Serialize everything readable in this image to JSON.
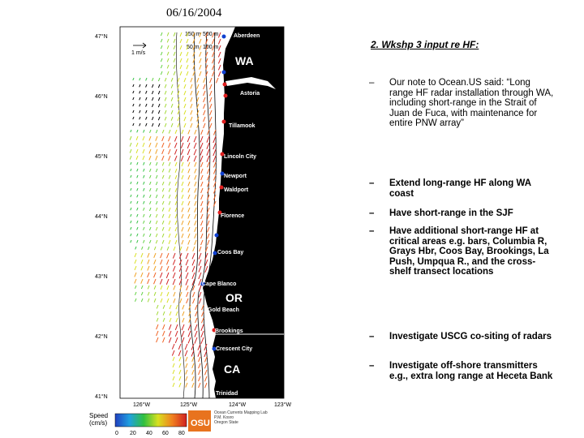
{
  "map": {
    "date": "06/16/2004",
    "lat_labels": [
      "47°N",
      "46°N",
      "45°N",
      "44°N",
      "43°N",
      "42°N",
      "41°N"
    ],
    "lon_labels": [
      "126°W",
      "125°W",
      "124°W",
      "123°W"
    ],
    "depth_labels": [
      "150 m",
      "500 m",
      "50 m",
      "100 m"
    ],
    "scale_label": "1 m/s",
    "cities": [
      "Aberdeen",
      "Astoria",
      "Tillamook",
      "Lincoln City",
      "Newport",
      "Waldport",
      "Florence",
      "Coos Bay",
      "Cape Blanco",
      "Gold Beach",
      "Brookings",
      "Crescent City",
      "Trinidad"
    ],
    "states": [
      "WA",
      "OR",
      "CA"
    ],
    "legend": {
      "label_line1": "Speed",
      "label_line2": "(cm/s)",
      "ticks": [
        "0",
        "20",
        "40",
        "60",
        "80"
      ]
    },
    "credit": {
      "logo": "OSU",
      "line1": "Ocean Currents Mapping Lab",
      "line2": "P.M. Kosro",
      "line3": "Oregon State"
    }
  },
  "slide": {
    "title": "2.  Wkshp 3 input re HF:",
    "bullets": [
      {
        "dash": "–",
        "text": "Our note to Ocean.US said: “Long range HF radar installation through WA, including short-range in the Strait of Juan de Fuca, with maintenance for entire PNW array”",
        "bold": false
      },
      {
        "dash": "–",
        "text": "Extend long-range HF along WA coast",
        "bold": true
      },
      {
        "dash": "–",
        "text": "Have short-range in the SJF",
        "bold": true
      },
      {
        "dash": "–",
        "text": "Have additional short-range HF at critical areas e.g. bars, Columbia R, Grays Hbr, Coos Bay, Brookings, La Push, Umpqua R., and the cross-shelf transect locations",
        "bold": true
      },
      {
        "dash": "–",
        "text": "Investigate USCG co-siting of radars",
        "bold": true
      },
      {
        "dash": "–",
        "text": "Investigate off-shore transmitters e.g., extra long range at Heceta Bank",
        "bold": true
      }
    ]
  },
  "colors": {
    "land": "#000000",
    "radar_site_red": "#e02020",
    "radar_site_blue": "#1040d0",
    "highlight_text": "#5a9bd5"
  }
}
